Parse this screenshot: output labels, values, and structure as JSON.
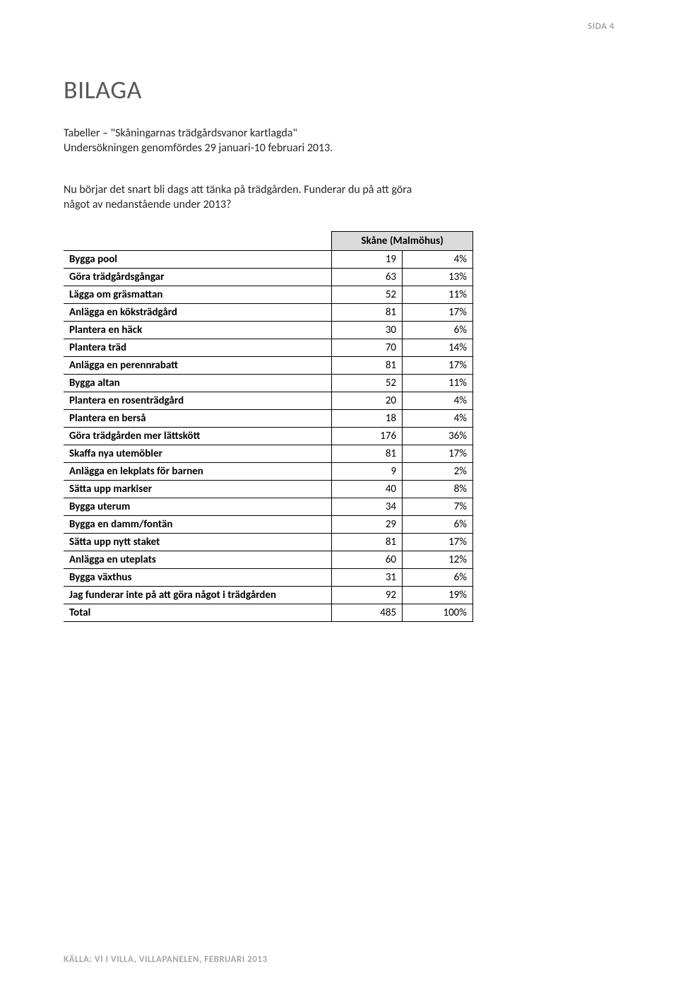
{
  "page_header": "SIDA 4",
  "title": "BILAGA",
  "subtitle": {
    "line1": "Tabeller – \"Skåningarnas trädgårdsvanor kartlagda\"",
    "line2": "Undersökningen genomfördes 29 januari-10 februari 2013."
  },
  "question": {
    "line1": "Nu börjar det snart bli dags att tänka på trädgården. Funderar du på att göra",
    "line2": "något av nedanstående under 2013?"
  },
  "table": {
    "region_header": "Skåne (Malmöhus)",
    "rows": [
      {
        "label": "Bygga pool",
        "count": "19",
        "pct": "4%"
      },
      {
        "label": "Göra trädgårdsgångar",
        "count": "63",
        "pct": "13%"
      },
      {
        "label": "Lägga om gräsmattan",
        "count": "52",
        "pct": "11%"
      },
      {
        "label": "Anlägga en köksträdgård",
        "count": "81",
        "pct": "17%"
      },
      {
        "label": "Plantera en häck",
        "count": "30",
        "pct": "6%"
      },
      {
        "label": "Plantera träd",
        "count": "70",
        "pct": "14%"
      },
      {
        "label": "Anlägga en perennrabatt",
        "count": "81",
        "pct": "17%"
      },
      {
        "label": "Bygga altan",
        "count": "52",
        "pct": "11%"
      },
      {
        "label": "Plantera en rosenträdgård",
        "count": "20",
        "pct": "4%"
      },
      {
        "label": "Plantera en berså",
        "count": "18",
        "pct": "4%"
      },
      {
        "label": "Göra trädgården mer lättskött",
        "count": "176",
        "pct": "36%"
      },
      {
        "label": "Skaffa nya utemöbler",
        "count": "81",
        "pct": "17%"
      },
      {
        "label": "Anlägga en lekplats för barnen",
        "count": "9",
        "pct": "2%"
      },
      {
        "label": "Sätta upp markiser",
        "count": "40",
        "pct": "8%"
      },
      {
        "label": "Bygga uterum",
        "count": "34",
        "pct": "7%"
      },
      {
        "label": "Bygga en damm/fontän",
        "count": "29",
        "pct": "6%"
      },
      {
        "label": "Sätta upp nytt staket",
        "count": "81",
        "pct": "17%"
      },
      {
        "label": "Anlägga en uteplats",
        "count": "60",
        "pct": "12%"
      },
      {
        "label": "Bygga växthus",
        "count": "31",
        "pct": "6%"
      },
      {
        "label": "Jag funderar inte på att göra något i trädgården",
        "count": "92",
        "pct": "19%"
      },
      {
        "label": "Total",
        "count": "485",
        "pct": "100%"
      }
    ]
  },
  "footer": "KÄLLA: VI I VILLA, VILLAPANELEN, FEBRUARI 2013"
}
